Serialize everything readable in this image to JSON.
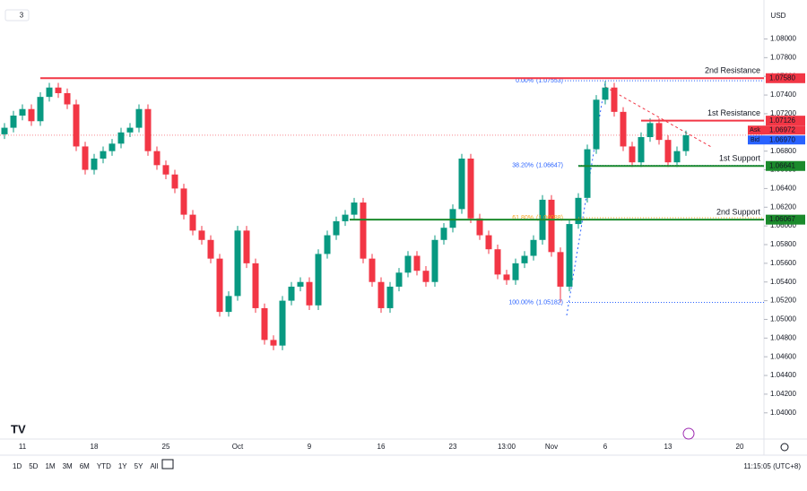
{
  "chart_data": {
    "type": "candlestick",
    "interval": "3",
    "currency": "USD",
    "categories": [
      null,
      null,
      "11",
      null,
      null,
      null,
      null,
      null,
      null,
      null,
      "18",
      null,
      null,
      null,
      null,
      null,
      null,
      null,
      "25",
      null,
      null,
      null,
      null,
      null,
      null,
      null,
      "Oct",
      null,
      null,
      null,
      null,
      null,
      null,
      null,
      "9",
      null,
      null,
      null,
      null,
      null,
      null,
      null,
      "16",
      null,
      null,
      null,
      null,
      null,
      null,
      null,
      "23",
      null,
      null,
      null,
      null,
      null,
      "13:00",
      null,
      null,
      null,
      null,
      "Nov",
      null,
      null,
      null,
      null,
      null,
      "6",
      null,
      null,
      null,
      null,
      null,
      null,
      "13",
      null,
      null,
      null,
      null,
      null,
      null,
      null,
      "20",
      null,
      null
    ],
    "open": [
      1.0698,
      1.0705,
      1.0718,
      1.0725,
      1.0712,
      1.0738,
      1.0748,
      1.0742,
      1.073,
      1.0685,
      1.066,
      1.0672,
      1.068,
      1.0688,
      1.07,
      1.0705,
      1.0725,
      1.068,
      1.0665,
      1.0655,
      1.064,
      1.0612,
      1.0595,
      1.0585,
      1.0565,
      1.0508,
      1.0525,
      1.0595,
      1.056,
      1.0512,
      1.0478,
      1.0472,
      1.052,
      1.0535,
      1.054,
      1.0515,
      1.057,
      1.059,
      1.0605,
      1.0612,
      1.0625,
      1.0565,
      1.054,
      1.0512,
      1.0535,
      1.055,
      1.0568,
      1.0552,
      1.054,
      1.0585,
      1.0598,
      1.0618,
      1.0672,
      1.0608,
      1.059,
      1.0575,
      1.0548,
      1.0542,
      1.056,
      1.0568,
      1.0585,
      1.0628,
      1.0572,
      1.0535,
      1.0602,
      1.063,
      1.0682,
      1.0735,
      1.0748,
      1.0722,
      1.0685,
      1.0668,
      1.0695,
      1.071,
      1.0692,
      1.0668,
      1.068,
      null,
      null,
      null,
      null,
      null,
      null,
      null,
      null
    ],
    "high": [
      1.071,
      1.0723,
      1.073,
      1.073,
      1.0743,
      1.0753,
      1.0753,
      1.0747,
      1.0735,
      1.069,
      1.0677,
      1.0685,
      1.0693,
      1.0705,
      1.071,
      1.073,
      1.073,
      1.0685,
      1.067,
      1.066,
      1.0645,
      1.0617,
      1.06,
      1.059,
      1.057,
      1.053,
      1.06,
      1.06,
      1.0565,
      1.0517,
      1.0483,
      1.0525,
      1.054,
      1.0545,
      1.0545,
      1.0575,
      1.0595,
      1.061,
      1.0617,
      1.063,
      1.063,
      1.057,
      1.0545,
      1.054,
      1.0555,
      1.0573,
      1.0573,
      1.0557,
      1.059,
      1.0603,
      1.0623,
      1.0677,
      1.0677,
      1.0613,
      1.0595,
      1.058,
      1.0553,
      1.0565,
      1.0573,
      1.059,
      1.0633,
      1.0633,
      1.0577,
      1.0607,
      1.0635,
      1.0687,
      1.074,
      1.0755,
      1.0753,
      1.0727,
      1.069,
      1.07,
      1.0715,
      1.0715,
      1.0697,
      1.0685,
      1.0702,
      null,
      null,
      null,
      null,
      null,
      null,
      null,
      null
    ],
    "low": [
      1.0693,
      1.07,
      1.0713,
      1.0707,
      1.0707,
      1.0733,
      1.0737,
      1.0725,
      1.068,
      1.0655,
      1.0655,
      1.0667,
      1.0675,
      1.0683,
      1.0695,
      1.07,
      1.0675,
      1.066,
      1.065,
      1.0635,
      1.0607,
      1.059,
      1.058,
      1.056,
      1.0503,
      1.0503,
      1.052,
      1.0555,
      1.0507,
      1.0473,
      1.0467,
      1.0467,
      1.0515,
      1.053,
      1.051,
      1.051,
      1.0565,
      1.0585,
      1.06,
      1.0607,
      1.056,
      1.0535,
      1.0507,
      1.0507,
      1.053,
      1.0545,
      1.0547,
      1.0535,
      1.0535,
      1.058,
      1.0593,
      1.0613,
      1.0603,
      1.0585,
      1.057,
      1.0543,
      1.0537,
      1.0537,
      1.0555,
      1.0563,
      1.058,
      1.0567,
      1.0518,
      1.053,
      1.0597,
      1.0625,
      1.0677,
      1.073,
      1.0717,
      1.068,
      1.0663,
      1.0663,
      1.069,
      1.0687,
      1.0663,
      1.0663,
      1.0675,
      null,
      null,
      null,
      null,
      null,
      null,
      null,
      null
    ],
    "close": [
      1.0705,
      1.0718,
      1.0725,
      1.0712,
      1.0738,
      1.0748,
      1.0742,
      1.073,
      1.0685,
      1.066,
      1.0672,
      1.068,
      1.0688,
      1.07,
      1.0705,
      1.0725,
      1.068,
      1.0665,
      1.0655,
      1.064,
      1.0612,
      1.0595,
      1.0585,
      1.0565,
      1.0508,
      1.0525,
      1.0595,
      1.056,
      1.0512,
      1.0478,
      1.0472,
      1.052,
      1.0535,
      1.054,
      1.0515,
      1.057,
      1.059,
      1.0605,
      1.0612,
      1.0625,
      1.0565,
      1.054,
      1.0512,
      1.0535,
      1.055,
      1.0568,
      1.0552,
      1.054,
      1.0585,
      1.0598,
      1.0618,
      1.0672,
      1.0608,
      1.059,
      1.0575,
      1.0548,
      1.0542,
      1.056,
      1.0568,
      1.0585,
      1.0628,
      1.0572,
      1.0535,
      1.0602,
      1.063,
      1.0682,
      1.0735,
      1.0748,
      1.0722,
      1.0685,
      1.0668,
      1.0695,
      1.071,
      1.0692,
      1.0668,
      1.068,
      1.0697,
      null,
      null,
      null,
      null,
      null,
      null,
      null,
      null
    ],
    "up_color": "#089981",
    "down_color": "#f23645",
    "ylim": [
      1.0372,
      1.0834
    ],
    "yticks": [
      {
        "value": 1.04,
        "label": "1.04000"
      },
      {
        "value": 1.042,
        "label": "1.04200"
      },
      {
        "value": 1.044,
        "label": "1.04400"
      },
      {
        "value": 1.046,
        "label": "1.04600"
      },
      {
        "value": 1.048,
        "label": "1.04800"
      },
      {
        "value": 1.05,
        "label": "1.05000"
      },
      {
        "value": 1.052,
        "label": "1.05200"
      },
      {
        "value": 1.054,
        "label": "1.05400"
      },
      {
        "value": 1.056,
        "label": "1.05600"
      },
      {
        "value": 1.058,
        "label": "1.05800"
      },
      {
        "value": 1.06,
        "label": "1.06000"
      },
      {
        "value": 1.062,
        "label": "1.06200"
      },
      {
        "value": 1.064,
        "label": "1.06400"
      },
      {
        "value": 1.066,
        "label": "1.06600"
      },
      {
        "value": 1.068,
        "label": "1.06800"
      },
      {
        "value": 1.07,
        "label": "1.07000"
      },
      {
        "value": 1.072,
        "label": "1.07200"
      },
      {
        "value": 1.074,
        "label": "1.07400"
      },
      {
        "value": 1.076,
        "label": "1.07600"
      },
      {
        "value": 1.078,
        "label": "1.07800"
      },
      {
        "value": 1.08,
        "label": "1.08000"
      }
    ],
    "levels": [
      {
        "name": "2nd Resistance",
        "value": 1.0758,
        "label": "1.07580",
        "color": "#f23645"
      },
      {
        "name": "1st Resistance",
        "value": 1.07126,
        "label": "1.07126",
        "color": "#f23645"
      },
      {
        "name": "1st Support",
        "value": 1.06641,
        "label": "1.06641",
        "color": "#1b8a2c"
      },
      {
        "name": "2nd Support",
        "value": 1.06067,
        "label": "1.06067",
        "color": "#1b8a2c"
      }
    ],
    "fib": [
      {
        "ratio": "0.00%",
        "value": 1.07553,
        "label": "(1.07553)",
        "color": "#2962ff"
      },
      {
        "ratio": "38.20%",
        "value": 1.06647,
        "label": "(1.06647)",
        "color": "#2962ff"
      },
      {
        "ratio": "61.80%",
        "value": 1.06088,
        "label": "(1.06088)",
        "color": "#f7a21b"
      },
      {
        "ratio": "100.00%",
        "value": 1.05182,
        "label": "(1.05182)",
        "color": "#2962ff"
      }
    ],
    "quotes": [
      {
        "name": "Ask",
        "value": 1.06972,
        "label": "1.06972",
        "color": "#f23645"
      },
      {
        "name": "Bid",
        "value": 1.0697,
        "label": "1.06970",
        "color": "#2962ff"
      }
    ],
    "ranges": [
      "1D",
      "5D",
      "1M",
      "3M",
      "6M",
      "YTD",
      "1Y",
      "5Y",
      "All"
    ],
    "clock": "11:15:05 (UTC+8)"
  }
}
